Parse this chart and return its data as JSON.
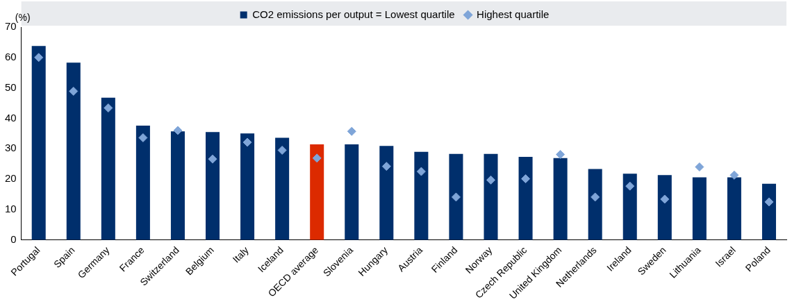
{
  "chart_data": {
    "type": "bar",
    "ylabel": "(%)",
    "categories": [
      "Portugal",
      "Spain",
      "Germany",
      "France",
      "Switzerland",
      "Belgium",
      "Italy",
      "Iceland",
      "OECD average",
      "Slovenia",
      "Hungary",
      "Austria",
      "Finland",
      "Norway",
      "Czech Republic",
      "United Kingdom",
      "Netherlands",
      "Ireland",
      "Sweden",
      "Lithuania",
      "Israel",
      "Poland"
    ],
    "series": [
      {
        "name": "CO2 emissions per output = Lowest quartile",
        "color": "#002f6c",
        "colors": [
          "#002f6c",
          "#002f6c",
          "#002f6c",
          "#002f6c",
          "#002f6c",
          "#002f6c",
          "#002f6c",
          "#002f6c",
          "#dc2a00",
          "#002f6c",
          "#002f6c",
          "#002f6c",
          "#002f6c",
          "#002f6c",
          "#002f6c",
          "#002f6c",
          "#002f6c",
          "#002f6c",
          "#002f6c",
          "#002f6c",
          "#002f6c",
          "#002f6c"
        ],
        "values": [
          63.8,
          58.3,
          46.8,
          37.6,
          35.7,
          35.5,
          35.0,
          33.6,
          31.4,
          31.4,
          30.9,
          29.0,
          28.3,
          28.3,
          27.3,
          26.9,
          23.3,
          21.8,
          21.3,
          20.6,
          20.6,
          18.5
        ]
      },
      {
        "name": "Highest quartile",
        "type": "scatter",
        "color": "#7fa5d8",
        "values": [
          60.0,
          48.9,
          43.4,
          33.6,
          36.0,
          26.6,
          32.1,
          29.5,
          26.9,
          35.7,
          24.2,
          22.5,
          14.1,
          19.7,
          20.1,
          28.1,
          14.1,
          17.7,
          13.4,
          24.0,
          21.3,
          12.5
        ]
      }
    ],
    "ylim": [
      0,
      70
    ],
    "yticks": [
      0,
      10,
      20,
      30,
      40,
      50,
      60,
      70
    ],
    "grid": false,
    "legend": "top",
    "marker": "diamond"
  }
}
